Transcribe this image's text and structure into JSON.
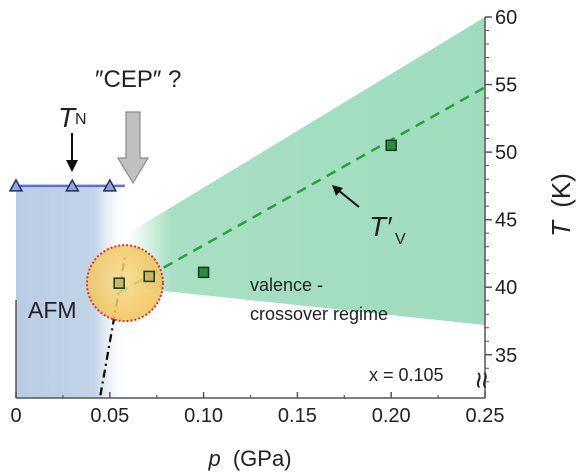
{
  "chart_data": {
    "type": "scatter",
    "title": "",
    "xlabel_var": "p",
    "xlabel_unit": "(GPa)",
    "ylabel_var": "T",
    "ylabel_unit": "(K)",
    "xlim": [
      0,
      0.25
    ],
    "ylim": [
      31.8,
      60
    ],
    "grid": false,
    "x_ticks": [
      0,
      0.05,
      0.1,
      0.15,
      0.2,
      0.25
    ],
    "x_tick_labels": [
      "0",
      "0.05",
      "0.10",
      "0.15",
      "0.20",
      "0.25"
    ],
    "y_ticks": [
      35,
      40,
      45,
      50,
      55,
      60
    ],
    "y_tick_labels": [
      "35",
      "40",
      "45",
      "50",
      "55",
      "60"
    ],
    "series": [
      {
        "kind": "triangles",
        "color": "#5a6fd8",
        "points": [
          [
            0,
            47.5
          ],
          [
            0.03,
            47.5
          ],
          [
            0.05,
            47.5
          ]
        ]
      },
      {
        "kind": "squares",
        "color": "#2e8b3e",
        "points": [
          [
            0.055,
            40.3
          ],
          [
            0.071,
            40.8
          ],
          [
            0.1,
            41.1
          ],
          [
            0.2,
            50.5
          ]
        ]
      }
    ],
    "valence_line": {
      "color": "#2aa03a",
      "from": [
        0.055,
        39.6
      ],
      "to": [
        0.25,
        54.8
      ]
    },
    "afm_boundary": {
      "color": "#000000",
      "from": [
        0.045,
        32
      ],
      "to": [
        0.058,
        42.2
      ]
    },
    "crossover_region": {
      "color": "#9fdcbd",
      "upper": [
        [
          0.06,
          44
        ],
        [
          0.25,
          60
        ]
      ],
      "lower": [
        [
          0.06,
          40
        ],
        [
          0.25,
          37.2
        ]
      ]
    },
    "afm_region": {
      "color": "#b3c8e0",
      "x": [
        0,
        0.06
      ],
      "y": [
        31.8,
        47.5
      ]
    },
    "cep_circle": {
      "center": [
        0.057,
        40.3
      ],
      "color": "#f2c45a"
    },
    "annotations": {
      "tn_main": "T",
      "tn_sub": "N",
      "cep": "″CEP″ ?",
      "tv_main": "T′",
      "tv_sub": "V",
      "afm": "AFM",
      "valence_line1": "valence -",
      "valence_line2": "crossover regime",
      "x_eq": "x = 0.105",
      "break_symbol": "≈"
    }
  }
}
